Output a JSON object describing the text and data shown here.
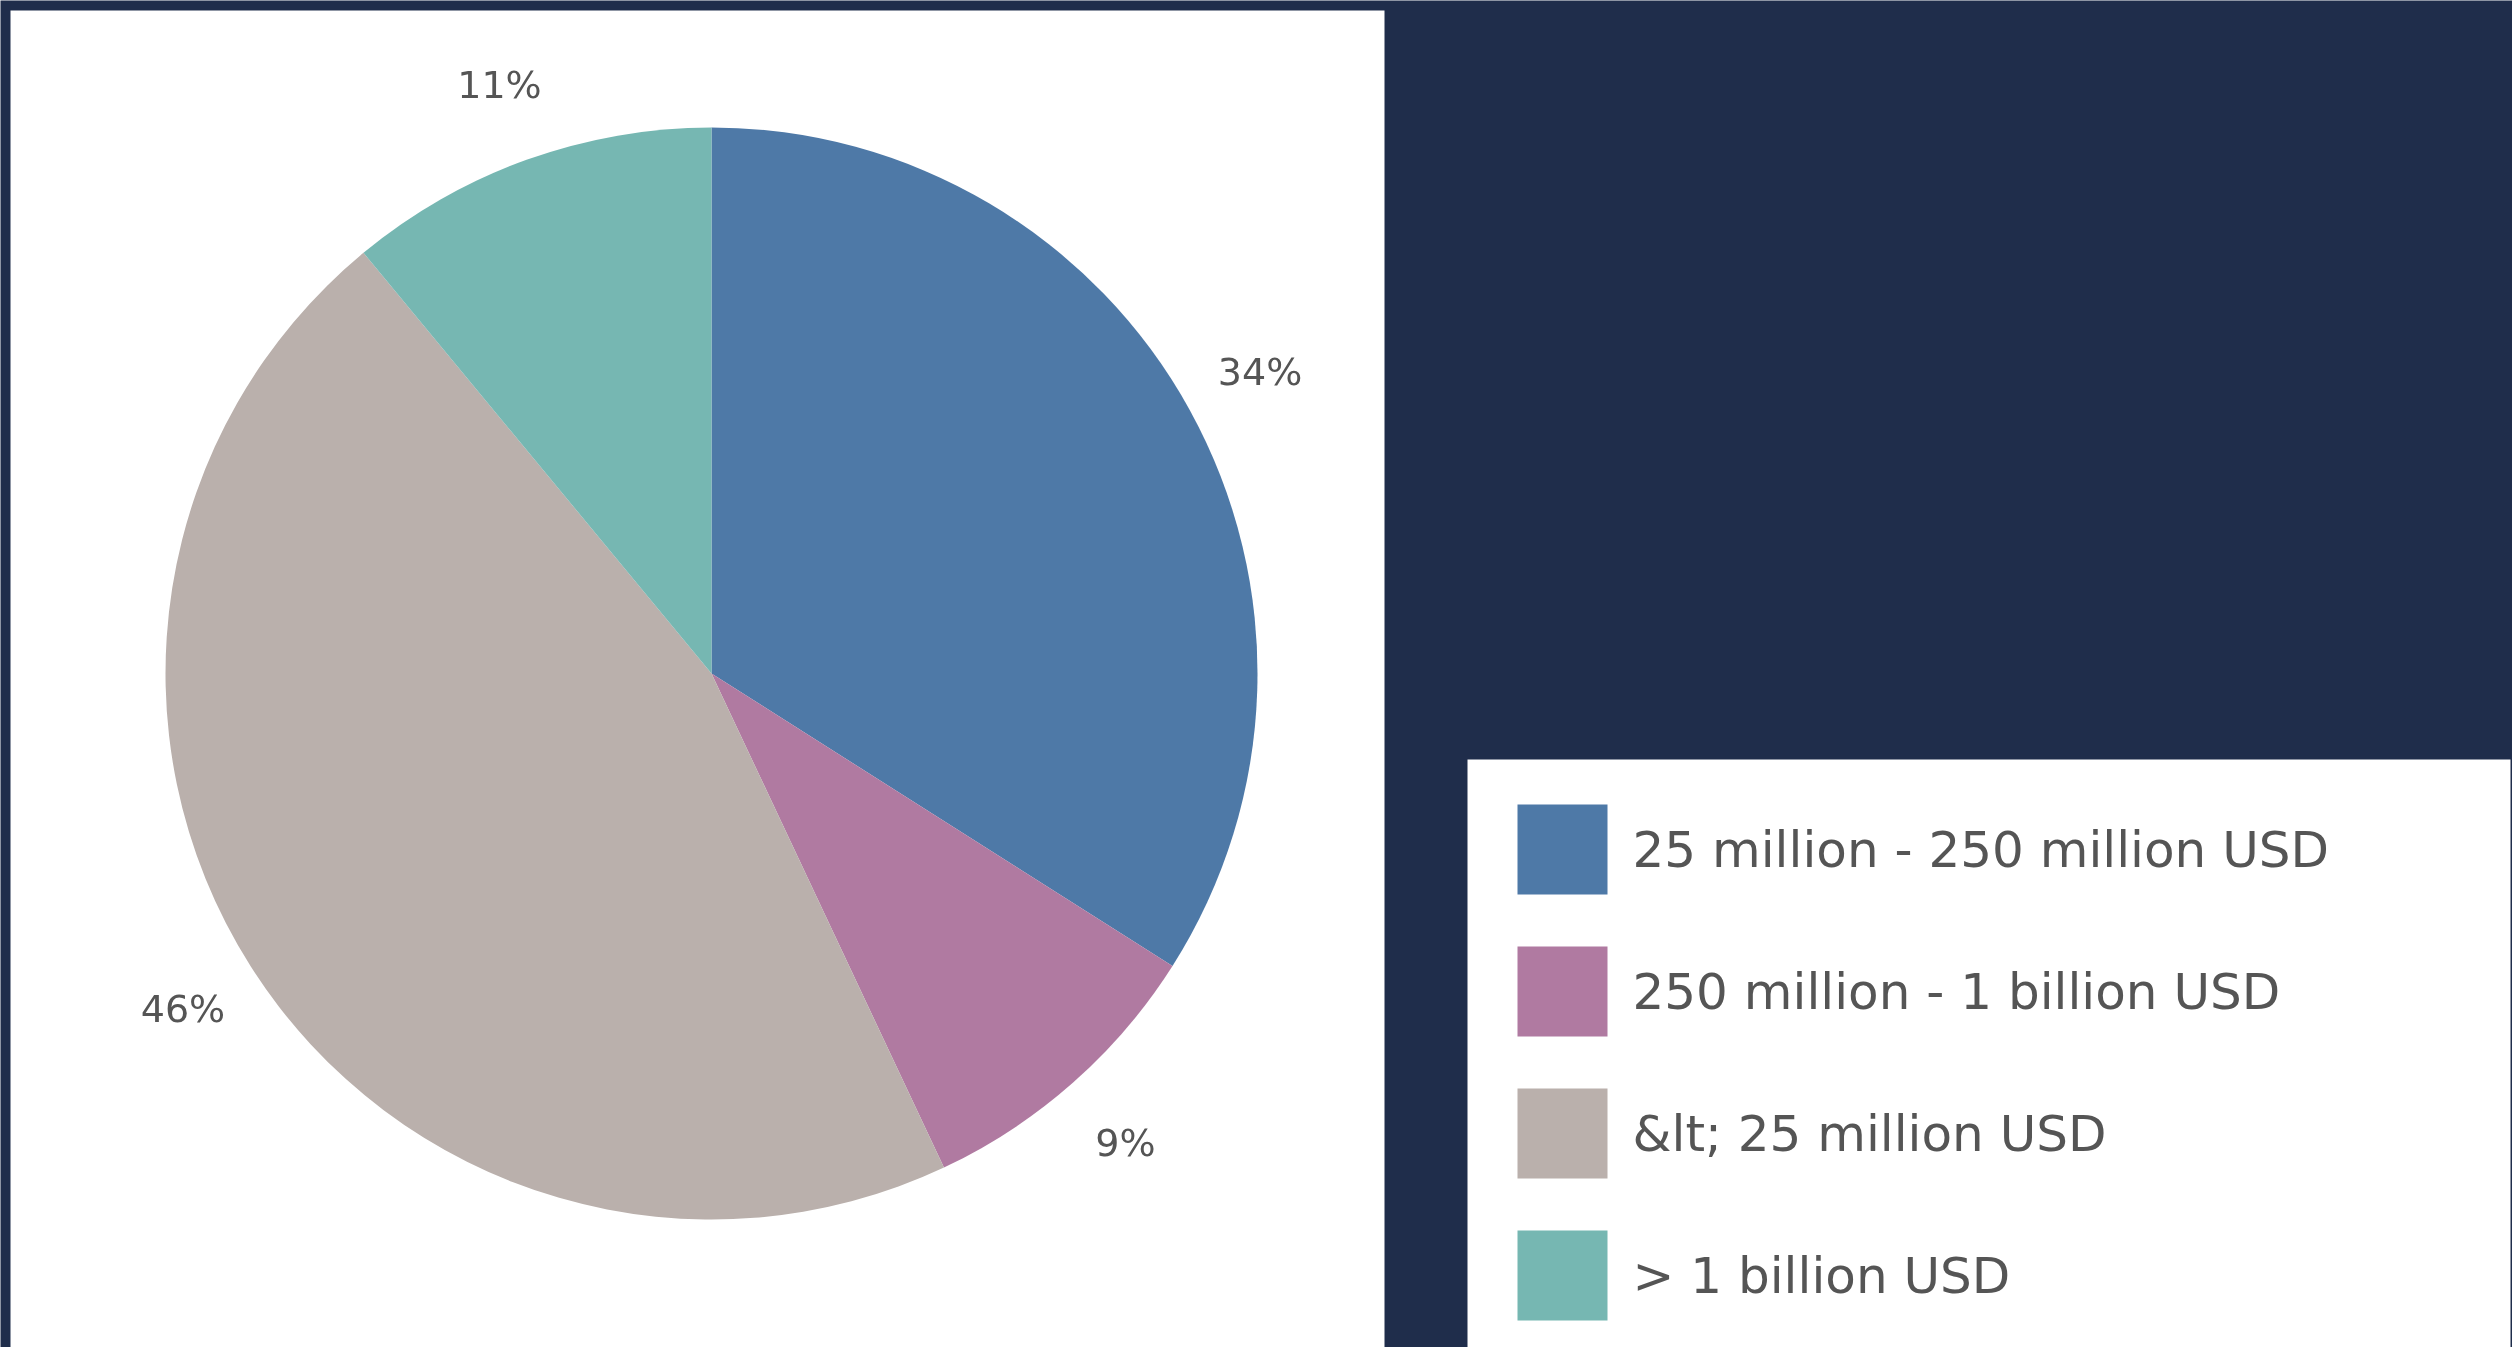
{
  "chart_data": {
    "type": "pie",
    "categories": [
      "25 million - 250 million USD",
      "250 million - 1 billion USD",
      "&lt; 25 million USD",
      "> 1 billion USD"
    ],
    "values": [
      34,
      9,
      46,
      11
    ],
    "colors": [
      "#4e79a7",
      "#b07aa1",
      "#bab0ac",
      "#76b7b2"
    ],
    "value_labels": [
      "34%",
      "9%",
      "46%",
      "11%"
    ],
    "legend": "bottom right"
  }
}
